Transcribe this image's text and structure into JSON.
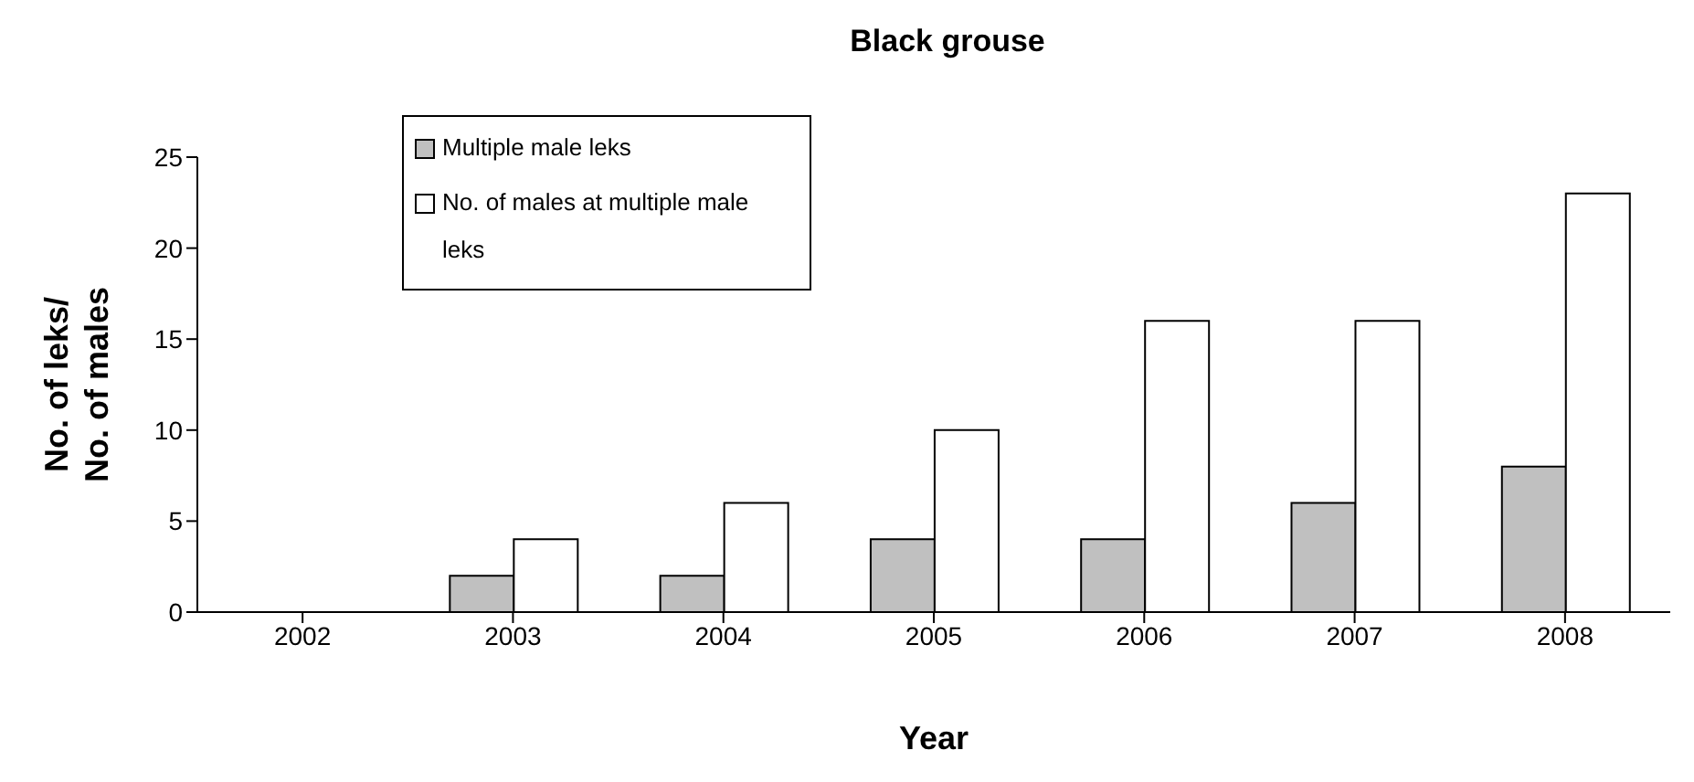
{
  "chart_data": {
    "type": "bar",
    "title": "Black grouse",
    "xlabel": "Year",
    "ylabel": "No. of leks/\nNo. of males",
    "categories": [
      "2002",
      "2003",
      "2004",
      "2005",
      "2006",
      "2007",
      "2008"
    ],
    "series": [
      {
        "name": "Multiple male leks",
        "color": "#c0c0c0",
        "values": [
          0,
          2,
          2,
          4,
          4,
          6,
          8
        ]
      },
      {
        "name": "No. of males at multiple male leks",
        "color": "#ffffff",
        "values": [
          0,
          4,
          6,
          10,
          16,
          16,
          23
        ]
      }
    ],
    "ylim": [
      0,
      25
    ],
    "yticks": [
      0,
      5,
      10,
      15,
      20,
      25
    ],
    "grid": false,
    "legend": "top left"
  }
}
